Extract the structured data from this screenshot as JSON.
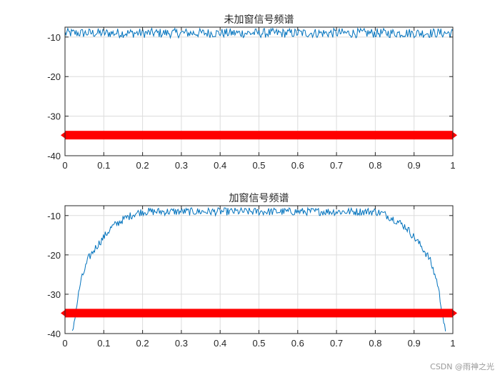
{
  "watermark": "CSDN @雨神之光",
  "chart_data": [
    {
      "type": "line",
      "title": "未加窗信号频谱",
      "xlim": [
        0,
        1
      ],
      "ylim": [
        -40,
        -7.5
      ],
      "xticks": [
        0,
        0.1,
        0.2,
        0.3,
        0.4,
        0.5,
        0.6,
        0.7,
        0.8,
        0.9,
        1
      ],
      "xtick_labels": [
        "0",
        "0.1",
        "0.2",
        "0.3",
        "0.4",
        "0.5",
        "0.6",
        "0.7",
        "0.8",
        "0.9",
        "1"
      ],
      "yticks": [
        -40,
        -30,
        -20,
        -10
      ],
      "ytick_labels": [
        "-40",
        "-30",
        "-20",
        "-10"
      ],
      "grid": true,
      "series": [
        {
          "color": "#0072BD",
          "x": [
            0,
            0.05,
            0.1,
            0.15,
            0.2,
            0.25,
            0.3,
            0.35,
            0.4,
            0.45,
            0.5,
            0.55,
            0.6,
            0.65,
            0.7,
            0.75,
            0.8,
            0.85,
            0.9,
            0.95,
            1
          ],
          "y": [
            -9,
            -9,
            -9,
            -9,
            -9,
            -9,
            -9,
            -9,
            -9,
            -9,
            -9,
            -9,
            -9,
            -9,
            -9,
            -9,
            -9,
            -9,
            -9,
            -9,
            -9
          ],
          "noise_amplitude": 1.2
        }
      ],
      "reference_line": {
        "y": -34.8,
        "color": "#FF0000"
      }
    },
    {
      "type": "line",
      "title": "加窗信号频谱",
      "xlim": [
        0,
        1
      ],
      "ylim": [
        -40,
        -7.5
      ],
      "xticks": [
        0,
        0.1,
        0.2,
        0.3,
        0.4,
        0.5,
        0.6,
        0.7,
        0.8,
        0.9,
        1
      ],
      "xtick_labels": [
        "0",
        "0.1",
        "0.2",
        "0.3",
        "0.4",
        "0.5",
        "0.6",
        "0.7",
        "0.8",
        "0.9",
        "1"
      ],
      "yticks": [
        -40,
        -30,
        -20,
        -10
      ],
      "ytick_labels": [
        "-40",
        "-30",
        "-20",
        "-10"
      ],
      "grid": true,
      "series": [
        {
          "color": "#0072BD",
          "x": [
            0.019,
            0.025,
            0.03,
            0.04,
            0.05,
            0.06,
            0.08,
            0.1,
            0.12,
            0.15,
            0.18,
            0.2,
            0.25,
            0.3,
            0.35,
            0.4,
            0.45,
            0.5,
            0.55,
            0.6,
            0.65,
            0.7,
            0.75,
            0.8,
            0.82,
            0.85,
            0.88,
            0.9,
            0.92,
            0.94,
            0.95,
            0.96,
            0.97,
            0.975,
            0.981
          ],
          "y": [
            -40,
            -36,
            -33,
            -27,
            -24,
            -21,
            -18,
            -15.5,
            -13,
            -11,
            -9.5,
            -9,
            -9,
            -9,
            -9,
            -9,
            -9,
            -9,
            -9,
            -9,
            -9,
            -9,
            -9,
            -9,
            -9.5,
            -11,
            -13,
            -15.5,
            -18,
            -21,
            -24,
            -27,
            -33,
            -36,
            -40
          ],
          "noise_amplitude": 1.0
        }
      ],
      "reference_line": {
        "y": -34.8,
        "color": "#FF0000"
      }
    }
  ]
}
